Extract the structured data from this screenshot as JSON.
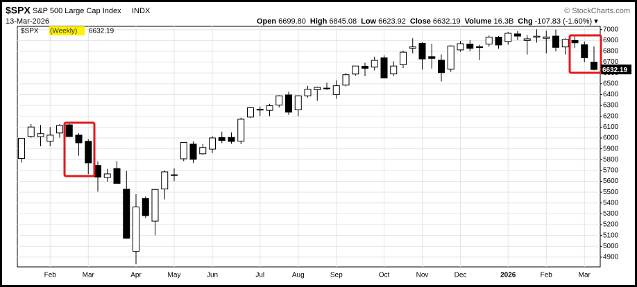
{
  "header": {
    "symbol": "$SPX",
    "name": "S&P 500 Large Cap Index",
    "exchange": "INDX",
    "copyright": "© StockCharts.com",
    "date": "13-Mar-2026",
    "stats": [
      {
        "label": "Open",
        "value": "6699.80"
      },
      {
        "label": "High",
        "value": "6845.08"
      },
      {
        "label": "Low",
        "value": "6623.92"
      },
      {
        "label": "Close",
        "value": "6632.19"
      },
      {
        "label": "Volume",
        "value": "16.3B"
      },
      {
        "label": "Chg",
        "value": "-107.83 (-1.60%) ▾"
      }
    ]
  },
  "chart_data": {
    "type": "candlestick",
    "name": "$SPX",
    "period": "(Weekly)",
    "categories": [
      null,
      null,
      null,
      "Feb",
      null,
      null,
      null,
      "Mar",
      null,
      null,
      null,
      null,
      "Apr",
      null,
      null,
      null,
      "May",
      null,
      null,
      null,
      "Jun",
      null,
      null,
      null,
      null,
      "Jul",
      null,
      null,
      null,
      "Aug",
      null,
      null,
      null,
      "Sep",
      null,
      null,
      null,
      null,
      "Oct",
      null,
      null,
      null,
      "Nov",
      null,
      null,
      null,
      "Dec",
      null,
      null,
      null,
      null,
      "2026",
      null,
      null,
      null,
      "Feb",
      null,
      null,
      null,
      "Mar",
      null
    ],
    "open": [
      5811,
      6014,
      6012,
      5969,
      6046,
      6121,
      6026,
      5969,
      5746,
      5635,
      5718,
      5527,
      4953,
      5441,
      5232,
      5529,
      5655,
      5808,
      5943,
      5854,
      5897,
      6004,
      6005,
      5970,
      6193,
      6264,
      6255,
      6304,
      6397,
      6260,
      6389,
      6445,
      6457,
      6401,
      6488,
      6590,
      6662,
      6654,
      6740,
      6591,
      6676,
      6828,
      6873,
      6750,
      6718,
      6634,
      6813,
      6866,
      6842,
      6866,
      6930,
      6890,
      6960,
      6900,
      6930,
      6920,
      6940,
      6840,
      6900,
      6860,
      6699.8
    ],
    "high": [
      6000,
      6128,
      6120,
      6101,
      6128,
      6147,
      6043,
      5987,
      5785,
      5715,
      5787,
      5695,
      5481,
      5460,
      5528,
      5700,
      5720,
      5958,
      5968,
      5944,
      6016,
      6059,
      6050,
      6187,
      6284,
      6290,
      6315,
      6395,
      6427,
      6395,
      6481,
      6473,
      6509,
      6532,
      6600,
      6656,
      6693,
      6750,
      6764,
      6707,
      6807,
      6920,
      6885,
      6870,
      6770,
      6855,
      6895,
      6901,
      6860,
      6945,
      6940,
      6978,
      6986,
      6950,
      7002,
      6990,
      7000,
      6920,
      6950,
      6890,
      6845.08
    ],
    "low": [
      5773,
      6003,
      5923,
      5923,
      6003,
      6009,
      5837,
      5666,
      5505,
      5597,
      5581,
      5069,
      4835,
      5262,
      5101,
      5433,
      5602,
      5786,
      5768,
      5845,
      5861,
      5952,
      5946,
      5943,
      6185,
      6202,
      6201,
      6281,
      6213,
      6201,
      6373,
      6343,
      6444,
      6361,
      6476,
      6573,
      6569,
      6623,
      6550,
      6570,
      6646,
      6780,
      6632,
      6640,
      6521,
      6610,
      6796,
      6800,
      6720,
      6843,
      6824,
      6860,
      6902,
      6770,
      6880,
      6780,
      6800,
      6770,
      6830,
      6700,
      6623.92
    ],
    "close": [
      5997,
      6101,
      6040,
      6026,
      6115,
      6013,
      5955,
      5770,
      5639,
      5668,
      5581,
      5074,
      5363,
      5283,
      5525,
      5687,
      5660,
      5958,
      5803,
      5912,
      6000,
      5977,
      5968,
      6173,
      6279,
      6260,
      6297,
      6389,
      6238,
      6389,
      6449,
      6467,
      6460,
      6482,
      6584,
      6664,
      6643,
      6716,
      6553,
      6664,
      6792,
      6840,
      6729,
      6734,
      6603,
      6849,
      6870,
      6827,
      6834,
      6930,
      6858,
      6966,
      6940,
      6915,
      6939,
      6932,
      6836,
      6910,
      6878,
      6740,
      6632.19
    ],
    "up_color": "#ffffff",
    "down_color": "#000000",
    "ylim": [
      4810,
      7030
    ],
    "yticks": [
      4900,
      5000,
      5100,
      5200,
      5300,
      5400,
      5500,
      5600,
      5700,
      5800,
      5900,
      6000,
      6100,
      6200,
      6300,
      6400,
      6500,
      6600,
      6700,
      6800,
      6900,
      7000
    ],
    "grid": true
  }
}
